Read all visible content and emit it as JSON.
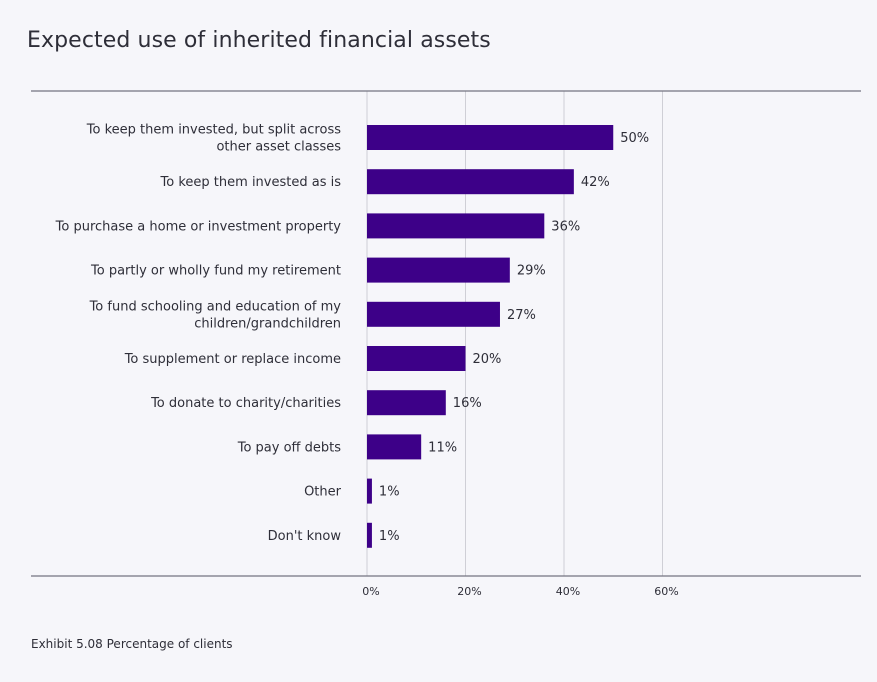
{
  "title": "Expected use of inherited financial assets",
  "footnote": "Exhibit 5.08 Percentage of clients",
  "colors": {
    "bar": "#3d0088",
    "grid": "#cfcfd6",
    "axis": "#747480",
    "text": "#2e2e38"
  },
  "chart_data": {
    "type": "bar",
    "orientation": "horizontal",
    "title": "Expected use of inherited financial assets",
    "categories": [
      [
        "To keep them invested, but split across",
        "other asset classes"
      ],
      [
        "To keep them invested as is"
      ],
      [
        "To purchase a home or investment property"
      ],
      [
        "To partly or wholly fund my retirement"
      ],
      [
        "To fund schooling and education of my",
        "children/grandchildren"
      ],
      [
        "To supplement or replace income"
      ],
      [
        "To donate to charity/charities"
      ],
      [
        "To pay off debts"
      ],
      [
        "Other"
      ],
      [
        "Don't know"
      ]
    ],
    "values": [
      50,
      42,
      36,
      29,
      27,
      20,
      16,
      11,
      1,
      1
    ],
    "value_labels": [
      "50%",
      "42%",
      "36%",
      "29%",
      "27%",
      "20%",
      "16%",
      "11%",
      "1%",
      "1%"
    ],
    "xlim": [
      0,
      60
    ],
    "xticks": [
      0,
      20,
      40,
      60
    ],
    "xtick_labels": [
      "0%",
      "20%",
      "40%",
      "60%"
    ],
    "grid": true,
    "legend": "none"
  }
}
